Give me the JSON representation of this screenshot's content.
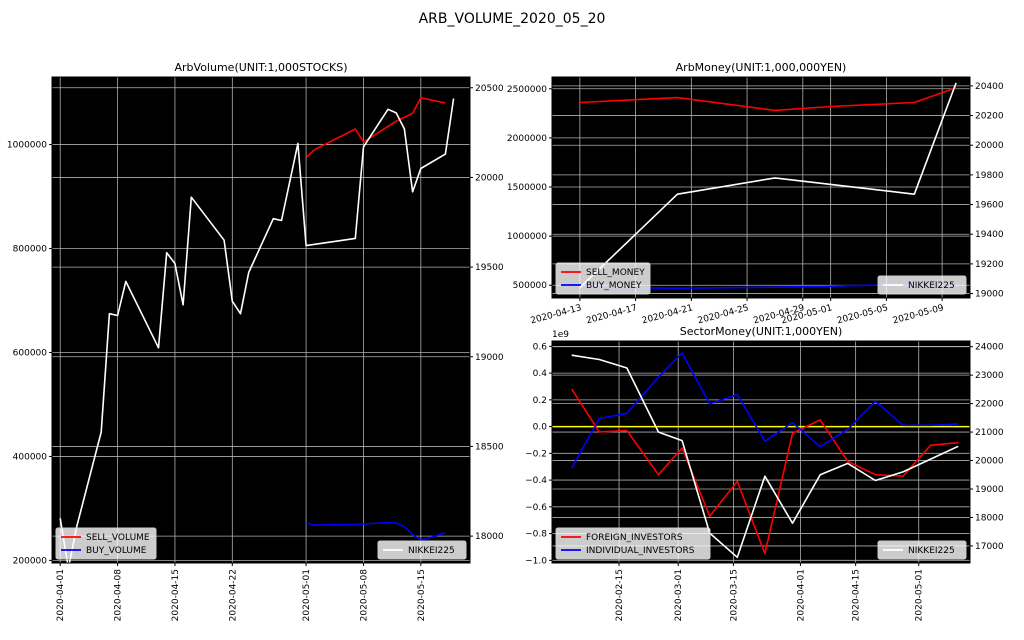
{
  "figure": {
    "suptitle": "ARB_VOLUME_2020_05_20"
  },
  "colors": {
    "sell": "#ff0000",
    "buy": "#0000ff",
    "nikkei": "#ffffff",
    "zero": "#ffff00",
    "bg": "#000000",
    "grid": "#b0b0b0"
  },
  "chart_data": [
    {
      "id": "vol",
      "type": "line",
      "title": "ArbVolume(UNIT:1,000STOCKS)",
      "x_type": "date",
      "xlim": [
        "2020-03-31",
        "2020-05-21"
      ],
      "xticks": [
        "2020-04-01",
        "2020-04-08",
        "2020-04-15",
        "2020-04-22",
        "2020-05-01",
        "2020-05-08",
        "2020-05-15"
      ],
      "ylim": [
        195000,
        1130000
      ],
      "yticks": [
        200000,
        400000,
        600000,
        800000,
        1000000
      ],
      "ytick_labels": [
        "200000",
        "400000",
        "600000",
        "800000",
        "1000000"
      ],
      "y2lim": [
        17850,
        20560
      ],
      "y2ticks": [
        18000,
        18500,
        19000,
        19500,
        20000,
        20500
      ],
      "y2tick_labels": [
        "18000",
        "18500",
        "19000",
        "19500",
        "20000",
        "20500"
      ],
      "grid": true,
      "series": [
        {
          "name": "SELL_VOLUME",
          "axis": "left",
          "color": "#ff0000",
          "x": [
            "2020-05-01",
            "2020-05-02",
            "2020-05-07",
            "2020-05-08",
            "2020-05-12",
            "2020-05-14",
            "2020-05-15",
            "2020-05-18"
          ],
          "y": [
            975000,
            990000,
            1030000,
            1005000,
            1045000,
            1060000,
            1090000,
            1080000
          ]
        },
        {
          "name": "BUY_VOLUME",
          "axis": "left",
          "color": "#0000ff",
          "x": [
            "2020-05-01",
            "2020-05-02",
            "2020-05-07",
            "2020-05-08",
            "2020-05-11",
            "2020-05-12",
            "2020-05-13",
            "2020-05-14",
            "2020-05-15",
            "2020-05-18"
          ],
          "y": [
            272000,
            268000,
            269000,
            270000,
            273000,
            272000,
            265000,
            250000,
            239000,
            253000
          ]
        },
        {
          "name": "NIKKEI225",
          "axis": "right",
          "color": "#ffffff",
          "x": [
            "2020-04-01",
            "2020-04-02",
            "2020-04-03",
            "2020-04-06",
            "2020-04-07",
            "2020-04-08",
            "2020-04-09",
            "2020-04-13",
            "2020-04-14",
            "2020-04-15",
            "2020-04-16",
            "2020-04-17",
            "2020-04-21",
            "2020-04-22",
            "2020-04-23",
            "2020-04-24",
            "2020-04-27",
            "2020-04-28",
            "2020-04-30",
            "2020-05-01",
            "2020-05-07",
            "2020-05-08",
            "2020-05-11",
            "2020-05-12",
            "2020-05-13",
            "2020-05-14",
            "2020-05-15",
            "2020-05-18",
            "2020-05-19"
          ],
          "y": [
            18100,
            17820,
            18050,
            18580,
            19240,
            19230,
            19420,
            19050,
            19580,
            19520,
            19290,
            19890,
            19650,
            19310,
            19240,
            19470,
            19770,
            19760,
            20190,
            19620,
            19660,
            20170,
            20380,
            20360,
            20270,
            19920,
            20050,
            20130,
            20440
          ]
        }
      ],
      "legend_left": {
        "loc": "lower-left",
        "entries": [
          "SELL_VOLUME",
          "BUY_VOLUME"
        ]
      },
      "legend_right": {
        "loc": "lower-right",
        "entries": [
          "NIKKEI225"
        ]
      }
    },
    {
      "id": "money",
      "type": "line",
      "title": "ArbMoney(UNIT:1,000,000YEN)",
      "x_type": "date",
      "xlim": [
        "2020-04-11",
        "2020-05-11"
      ],
      "xticks": [
        "2020-04-13",
        "2020-04-17",
        "2020-04-21",
        "2020-04-25",
        "2020-04-29",
        "2020-05-01",
        "2020-05-05",
        "2020-05-09"
      ],
      "ylim": [
        370000,
        2620000
      ],
      "yticks": [
        500000,
        1000000,
        1500000,
        2000000,
        2500000
      ],
      "ytick_labels": [
        "500000",
        "1000000",
        "1500000",
        "2000000",
        "2500000"
      ],
      "y2lim": [
        18970,
        20460
      ],
      "y2ticks": [
        19000,
        19200,
        19400,
        19600,
        19800,
        20000,
        20200,
        20400
      ],
      "y2tick_labels": [
        "19000",
        "19200",
        "19400",
        "19600",
        "19800",
        "20000",
        "20200",
        "20400"
      ],
      "grid": true,
      "series": [
        {
          "name": "SELL_MONEY",
          "axis": "left",
          "color": "#ff0000",
          "x": [
            "2020-04-13",
            "2020-04-20",
            "2020-04-27",
            "2020-05-01",
            "2020-05-07",
            "2020-05-10"
          ],
          "y": [
            2360000,
            2410000,
            2280000,
            2320000,
            2360000,
            2510000
          ]
        },
        {
          "name": "BUY_MONEY",
          "axis": "left",
          "color": "#0000ff",
          "x": [
            "2020-04-13",
            "2020-04-20",
            "2020-04-27",
            "2020-05-01",
            "2020-05-07",
            "2020-05-10"
          ],
          "y": [
            480000,
            470000,
            480000,
            490000,
            510000,
            490000
          ]
        },
        {
          "name": "NIKKEI225",
          "axis": "right",
          "color": "#ffffff",
          "x": [
            "2020-04-13",
            "2020-04-20",
            "2020-04-27",
            "2020-05-07",
            "2020-05-10"
          ],
          "y": [
            19040,
            19670,
            19780,
            19670,
            20420
          ]
        }
      ],
      "legend_left": {
        "loc": "lower-left",
        "entries": [
          "SELL_MONEY",
          "BUY_MONEY"
        ]
      },
      "legend_right": {
        "loc": "lower-right",
        "entries": [
          "NIKKEI225"
        ]
      }
    },
    {
      "id": "sector",
      "type": "line",
      "title": "SectorMoney(UNIT:1,000YEN)",
      "y_offset_label": "1e9",
      "x_type": "date",
      "xlim": [
        "2020-01-29",
        "2020-05-14"
      ],
      "xticks": [
        "2020-02-15",
        "2020-03-01",
        "2020-03-15",
        "2020-04-01",
        "2020-04-15",
        "2020-05-01"
      ],
      "ylim": [
        -1.02,
        0.64
      ],
      "yticks": [
        -1.0,
        -0.8,
        -0.6,
        -0.4,
        -0.2,
        0.0,
        0.2,
        0.4,
        0.6
      ],
      "ytick_labels": [
        "−1.0",
        "−0.8",
        "−0.6",
        "−0.4",
        "−0.2",
        "0.0",
        "0.2",
        "0.4",
        "0.6"
      ],
      "y2lim": [
        16400,
        24200
      ],
      "y2ticks": [
        17000,
        18000,
        19000,
        20000,
        21000,
        22000,
        23000,
        24000
      ],
      "y2tick_labels": [
        "17000",
        "18000",
        "19000",
        "20000",
        "21000",
        "22000",
        "23000",
        "24000"
      ],
      "grid": true,
      "hline": {
        "y": 0,
        "color": "#ffff00"
      },
      "series": [
        {
          "name": "FOREIGN_INVESTORS",
          "axis": "left",
          "color": "#ff0000",
          "x": [
            "2020-02-03",
            "2020-02-10",
            "2020-02-17",
            "2020-02-25",
            "2020-03-02",
            "2020-03-09",
            "2020-03-16",
            "2020-03-23",
            "2020-03-30",
            "2020-04-06",
            "2020-04-13",
            "2020-04-20",
            "2020-04-27",
            "2020-05-04",
            "2020-05-11"
          ],
          "y": [
            0.28,
            -0.04,
            -0.03,
            -0.36,
            -0.16,
            -0.67,
            -0.41,
            -0.95,
            -0.05,
            0.05,
            -0.26,
            -0.36,
            -0.37,
            -0.14,
            -0.12
          ]
        },
        {
          "name": "INDIVIDUAL_INVESTORS",
          "axis": "left",
          "color": "#0000ff",
          "x": [
            "2020-02-03",
            "2020-02-10",
            "2020-02-17",
            "2020-02-25",
            "2020-03-02",
            "2020-03-09",
            "2020-03-16",
            "2020-03-23",
            "2020-03-30",
            "2020-04-06",
            "2020-04-13",
            "2020-04-20",
            "2020-04-27",
            "2020-05-04",
            "2020-05-11"
          ],
          "y": [
            -0.31,
            0.06,
            0.1,
            0.37,
            0.55,
            0.17,
            0.24,
            -0.11,
            0.03,
            -0.15,
            -0.02,
            0.19,
            0.01,
            0.01,
            0.02
          ]
        },
        {
          "name": "NIKKEI225",
          "axis": "right",
          "color": "#ffffff",
          "x": [
            "2020-02-03",
            "2020-02-10",
            "2020-02-17",
            "2020-02-25",
            "2020-03-02",
            "2020-03-09",
            "2020-03-16",
            "2020-03-23",
            "2020-03-30",
            "2020-04-06",
            "2020-04-13",
            "2020-04-20",
            "2020-04-27",
            "2020-05-04",
            "2020-05-11"
          ],
          "y": [
            23700,
            23550,
            23250,
            21000,
            20700,
            17450,
            16600,
            19450,
            17800,
            19500,
            19900,
            19300,
            19600,
            20050,
            20500
          ]
        }
      ],
      "legend_left": {
        "loc": "lower-left",
        "entries": [
          "FOREIGN_INVESTORS",
          "INDIVIDUAL_INVESTORS"
        ]
      },
      "legend_right": {
        "loc": "lower-right",
        "entries": [
          "NIKKEI225"
        ]
      }
    }
  ]
}
